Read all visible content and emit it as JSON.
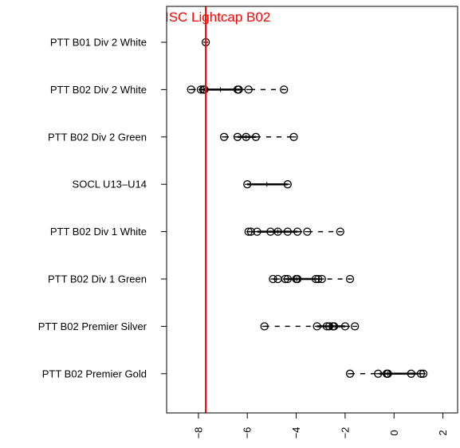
{
  "chart_data": {
    "type": "scatter",
    "orientation": "horizontal-categories",
    "categories": [
      "PTT B01 Div 2 White",
      "PTT B02 Div 2 White",
      "PTT B02 Div 2 Green",
      "SOCL U13–U14",
      "PTT B02 Div 1 White",
      "PTT B02 Div 1 Green",
      "PTT B02 Premier Silver",
      "PTT B02 Premier Gold"
    ],
    "rows": [
      {
        "points": [
          -7.7
        ],
        "q1": -7.7,
        "median": -7.7,
        "q3": -7.7
      },
      {
        "points": [
          -8.3,
          -7.9,
          -7.8,
          -7.75,
          -6.4,
          -6.35,
          -5.95,
          -4.5
        ],
        "q1": -7.85,
        "median": -7.1,
        "q3": -6.3
      },
      {
        "points": [
          -6.95,
          -6.4,
          -6.05,
          -5.65,
          -4.1
        ],
        "q1": -6.4,
        "median": -6.05,
        "q3": -5.65
      },
      {
        "points": [
          -6.0,
          -4.35
        ],
        "q1": -6.0,
        "median": -5.2,
        "q3": -4.35
      },
      {
        "points": [
          -5.95,
          -5.85,
          -5.6,
          -5.05,
          -4.75,
          -4.35,
          -3.95,
          -3.55,
          -2.2
        ],
        "q1": -5.6,
        "median": -4.75,
        "q3": -3.95
      },
      {
        "points": [
          -4.95,
          -4.75,
          -4.45,
          -4.35,
          -4.0,
          -3.95,
          -3.2,
          -3.1,
          -2.95,
          -1.8
        ],
        "q1": -4.4,
        "median": -3.98,
        "q3": -3.15
      },
      {
        "points": [
          -5.3,
          -3.15,
          -2.75,
          -2.65,
          -2.5,
          -2.45,
          -2.0,
          -1.6
        ],
        "q1": -3.15,
        "median": -2.55,
        "q3": -2.0
      },
      {
        "points": [
          -1.8,
          -0.65,
          -0.3,
          -0.25,
          0.7,
          1.1,
          1.2
        ],
        "q1": -0.6,
        "median": -0.25,
        "q3": 0.95
      }
    ],
    "xlim": [
      -9.3,
      2.6
    ],
    "x_ticks": [
      -8,
      -6,
      -4,
      -2,
      0,
      2
    ],
    "x_tick_labels": [
      "−8",
      "−6",
      "−4",
      "−2",
      "0",
      "2"
    ],
    "reference_line": {
      "value": -7.7,
      "label": "ISC Lightcap B02",
      "color": "#ff0000"
    },
    "colors": {
      "points": "#000000",
      "reference": "#ff0000"
    },
    "grid": false
  }
}
